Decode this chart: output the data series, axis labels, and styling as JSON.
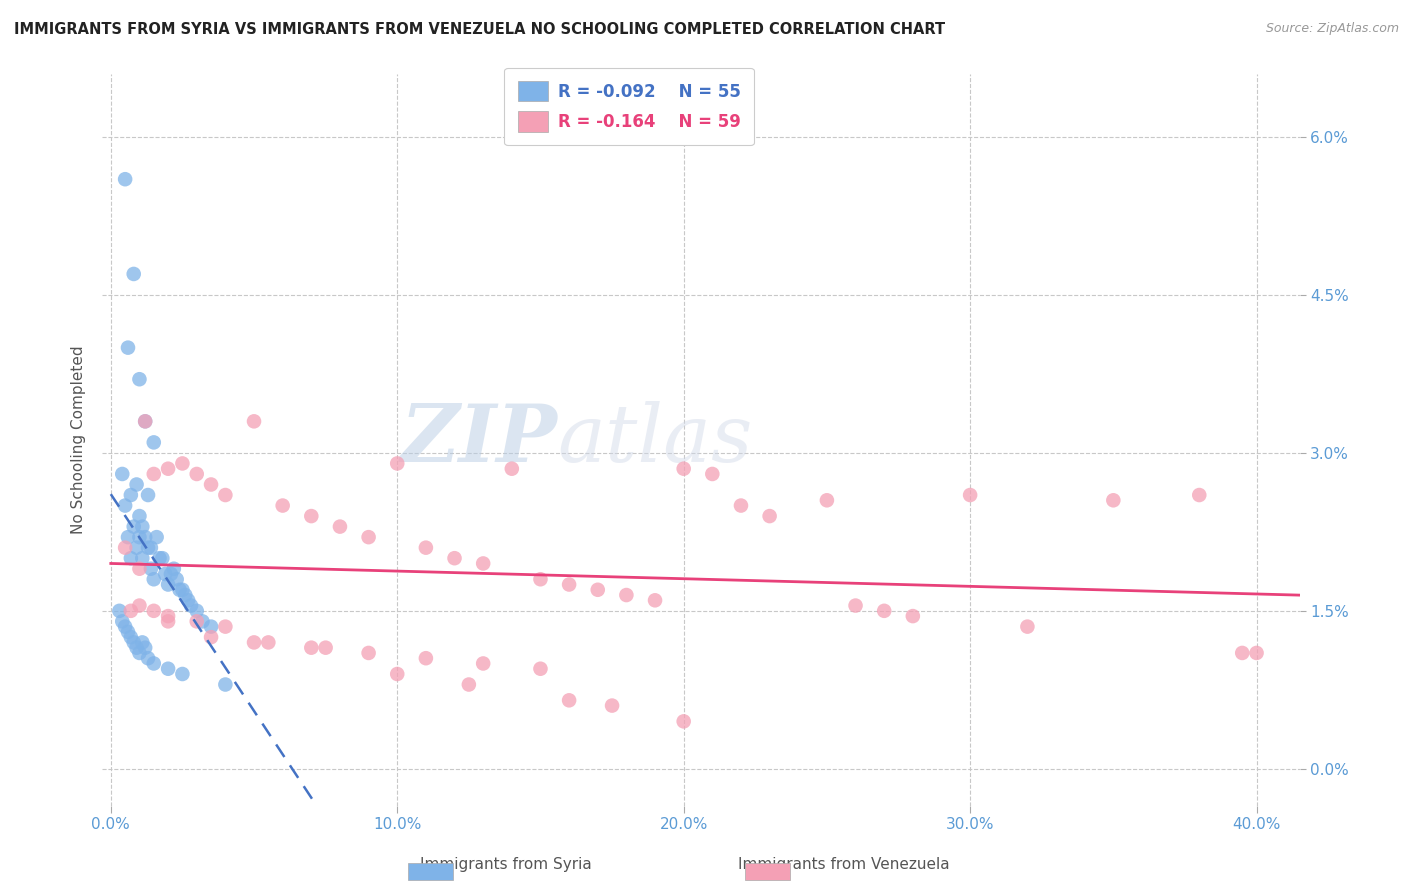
{
  "title": "IMMIGRANTS FROM SYRIA VS IMMIGRANTS FROM VENEZUELA NO SCHOOLING COMPLETED CORRELATION CHART",
  "source": "Source: ZipAtlas.com",
  "xlabel_ticks": [
    "0.0%",
    "10.0%",
    "20.0%",
    "30.0%",
    "40.0%"
  ],
  "xlabel_tick_vals": [
    0.0,
    10.0,
    20.0,
    30.0,
    40.0
  ],
  "ylabel_ticks": [
    "0.0%",
    "1.5%",
    "3.0%",
    "4.5%",
    "6.0%"
  ],
  "ylabel_tick_vals": [
    0.0,
    1.5,
    3.0,
    4.5,
    6.0
  ],
  "xmin": -0.3,
  "xmax": 41.5,
  "ymin": -0.35,
  "ymax": 6.6,
  "ylabel": "No Schooling Completed",
  "legend_label1": "Immigrants from Syria",
  "legend_label2": "Immigrants from Venezuela",
  "legend_r1": "R = -0.092",
  "legend_n1": "N = 55",
  "legend_r2": "R = -0.164",
  "legend_n2": "N = 59",
  "color_syria": "#7fb3e8",
  "color_venezuela": "#f4a0b5",
  "trendline_color_syria": "#4472c4",
  "trendline_color_venezuela": "#e8417a",
  "background_color": "#ffffff",
  "watermark_zip": "ZIP",
  "watermark_atlas": "atlas",
  "syria_x": [
    0.4,
    0.5,
    0.5,
    0.6,
    0.6,
    0.7,
    0.7,
    0.8,
    0.8,
    0.9,
    0.9,
    1.0,
    1.0,
    1.0,
    1.1,
    1.1,
    1.2,
    1.2,
    1.3,
    1.3,
    1.4,
    1.4,
    1.5,
    1.5,
    1.6,
    1.7,
    1.8,
    1.9,
    2.0,
    2.1,
    2.2,
    2.3,
    2.4,
    2.5,
    2.6,
    2.7,
    2.8,
    3.0,
    3.2,
    3.5,
    0.3,
    0.4,
    0.5,
    0.6,
    0.7,
    0.8,
    0.9,
    1.0,
    1.1,
    1.2,
    1.3,
    1.5,
    2.0,
    2.5,
    4.0
  ],
  "syria_y": [
    2.8,
    5.6,
    2.5,
    4.0,
    2.2,
    2.6,
    2.0,
    4.7,
    2.3,
    2.7,
    2.1,
    3.7,
    2.4,
    2.2,
    2.3,
    2.0,
    3.3,
    2.2,
    2.6,
    2.1,
    2.1,
    1.9,
    3.1,
    1.8,
    2.2,
    2.0,
    2.0,
    1.85,
    1.75,
    1.85,
    1.9,
    1.8,
    1.7,
    1.7,
    1.65,
    1.6,
    1.55,
    1.5,
    1.4,
    1.35,
    1.5,
    1.4,
    1.35,
    1.3,
    1.25,
    1.2,
    1.15,
    1.1,
    1.2,
    1.15,
    1.05,
    1.0,
    0.95,
    0.9,
    0.8
  ],
  "venezuela_x": [
    0.5,
    0.7,
    1.0,
    1.2,
    1.5,
    2.0,
    2.5,
    3.0,
    3.5,
    4.0,
    5.0,
    6.0,
    7.0,
    8.0,
    9.0,
    10.0,
    11.0,
    12.0,
    13.0,
    14.0,
    15.0,
    16.0,
    17.0,
    18.0,
    19.0,
    20.0,
    21.0,
    22.0,
    23.0,
    25.0,
    26.0,
    27.0,
    28.0,
    30.0,
    32.0,
    35.0,
    38.0,
    39.5,
    1.5,
    2.0,
    3.0,
    4.0,
    5.5,
    7.0,
    9.0,
    11.0,
    13.0,
    15.0,
    17.5,
    20.0,
    1.0,
    2.0,
    3.5,
    5.0,
    7.5,
    10.0,
    12.5,
    16.0,
    40.0
  ],
  "venezuela_y": [
    2.1,
    1.5,
    1.9,
    3.3,
    2.8,
    2.85,
    2.9,
    2.8,
    2.7,
    2.6,
    3.3,
    2.5,
    2.4,
    2.3,
    2.2,
    2.9,
    2.1,
    2.0,
    1.95,
    2.85,
    1.8,
    1.75,
    1.7,
    1.65,
    1.6,
    2.85,
    2.8,
    2.5,
    2.4,
    2.55,
    1.55,
    1.5,
    1.45,
    2.6,
    1.35,
    2.55,
    2.6,
    1.1,
    1.5,
    1.45,
    1.4,
    1.35,
    1.2,
    1.15,
    1.1,
    1.05,
    1.0,
    0.95,
    0.6,
    0.45,
    1.55,
    1.4,
    1.25,
    1.2,
    1.15,
    0.9,
    0.8,
    0.65,
    1.1
  ],
  "syria_trend_x0": 0.0,
  "syria_trend_x1": 41.5,
  "venezuela_trend_x0": 0.0,
  "venezuela_trend_x1": 41.5
}
